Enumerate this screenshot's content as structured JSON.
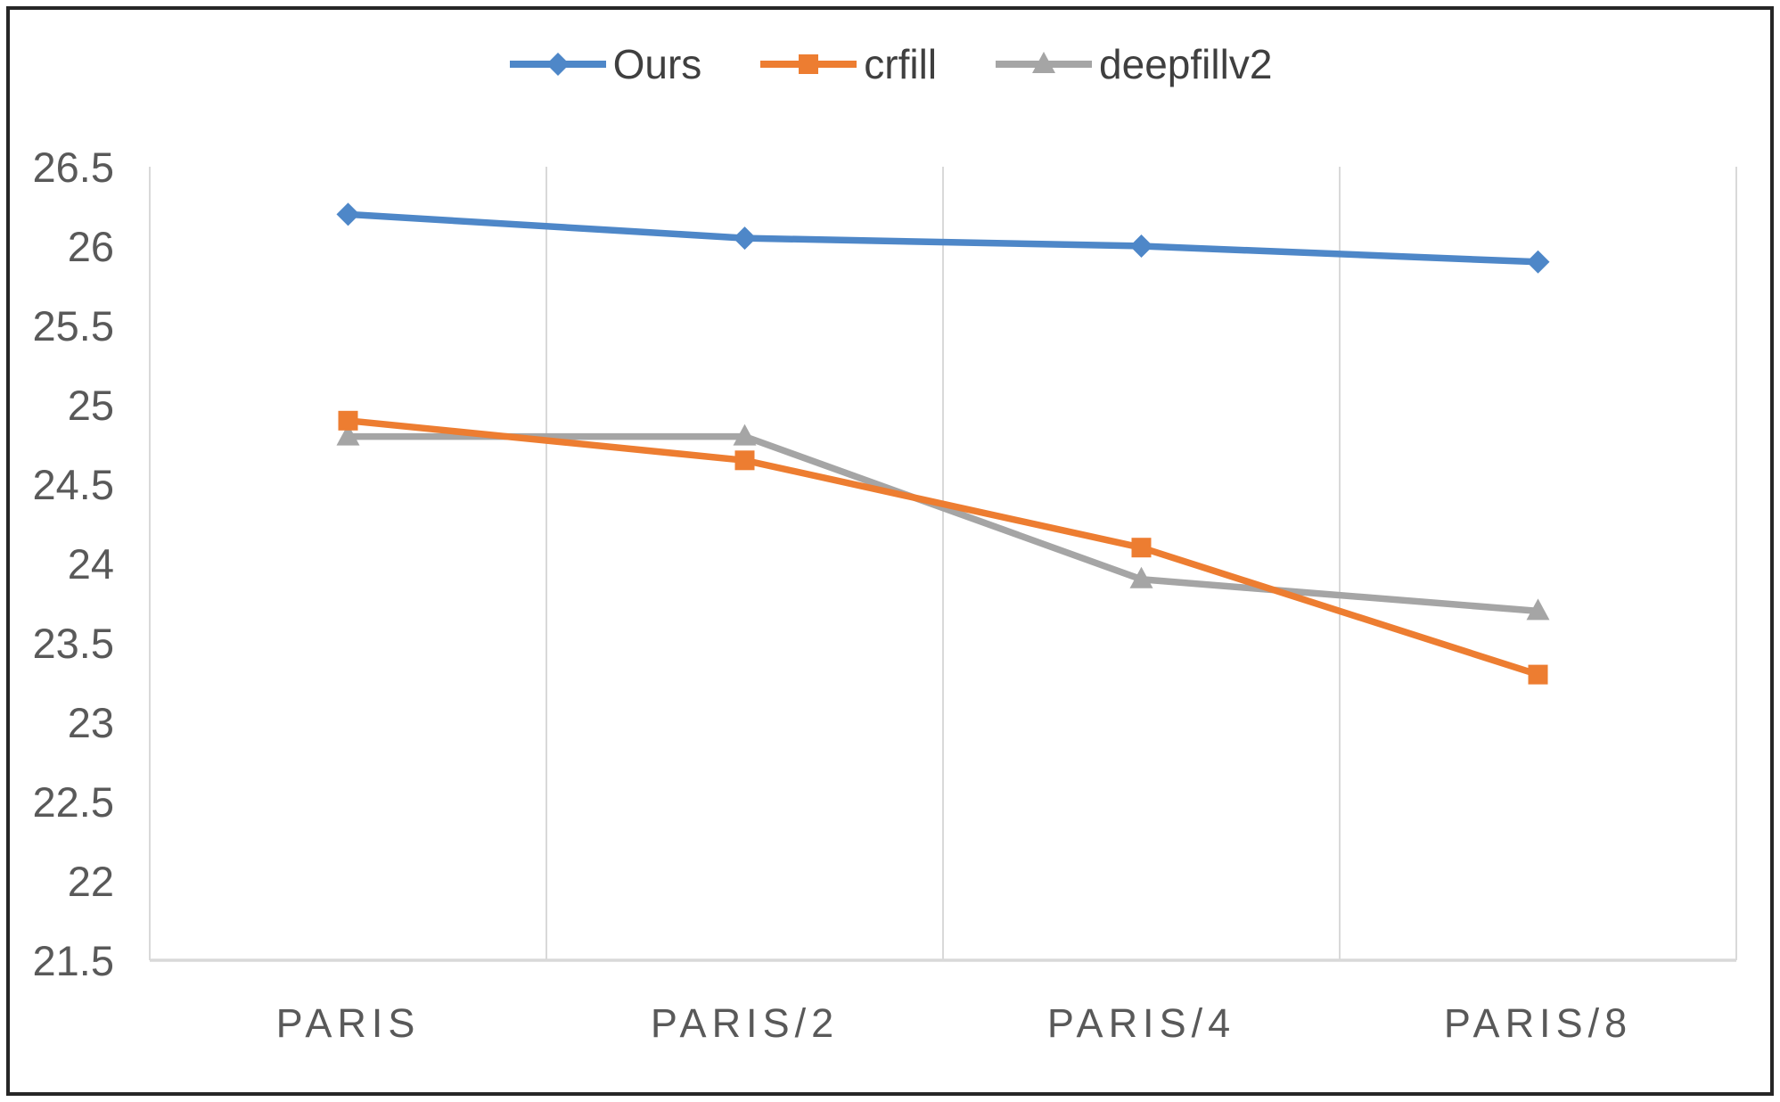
{
  "figure": {
    "background": "#ffffff",
    "border_color": "#262626"
  },
  "chart_data": {
    "type": "line",
    "title": "",
    "xlabel": "",
    "ylabel": "",
    "categories": [
      "PARIS",
      "PARIS/2",
      "PARIS/4",
      "PARIS/8"
    ],
    "series": [
      {
        "name": "Ours",
        "color": "#4E87C8",
        "marker": "diamond",
        "values": [
          26.2,
          26.05,
          26.0,
          25.9
        ]
      },
      {
        "name": "crfill",
        "color": "#ED7D31",
        "marker": "square",
        "values": [
          24.9,
          24.65,
          24.1,
          23.3
        ]
      },
      {
        "name": "deepfillv2",
        "color": "#A5A5A5",
        "marker": "triangle",
        "values": [
          24.8,
          24.8,
          23.9,
          23.7
        ]
      }
    ],
    "y_axis": {
      "min": 21.5,
      "max": 26.5,
      "step": 0.5
    },
    "y_tick_labels": [
      "26.5",
      "26",
      "25.5",
      "25",
      "24.5",
      "24",
      "23.5",
      "23",
      "22.5",
      "22",
      "21.5"
    ],
    "legend_position": "top",
    "gridlines": {
      "vertical": true,
      "horizontal": false
    },
    "axis_text_color": "#595959",
    "gridline_color": "#D9D9D9"
  }
}
